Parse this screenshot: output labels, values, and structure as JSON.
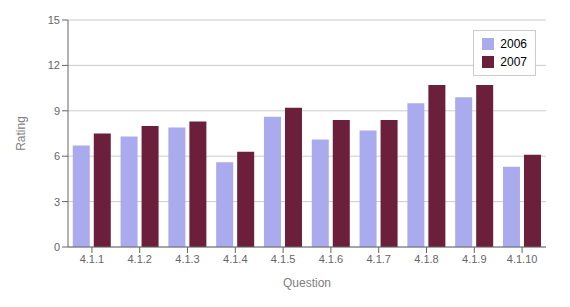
{
  "chart_data": {
    "type": "bar",
    "categories": [
      "4.1.1",
      "4.1.2",
      "4.1.3",
      "4.1.4",
      "4.1.5",
      "4.1.6",
      "4.1.7",
      "4.1.8",
      "4.1.9",
      "4.1.10"
    ],
    "series": [
      {
        "name": "2006",
        "color": "#aaaaee",
        "values": [
          6.7,
          7.3,
          7.9,
          5.6,
          8.6,
          7.1,
          7.7,
          9.5,
          9.9,
          5.3
        ]
      },
      {
        "name": "2007",
        "color": "#6b1f3a",
        "values": [
          7.5,
          8.0,
          8.3,
          6.3,
          9.2,
          8.4,
          8.4,
          10.7,
          10.7,
          6.1
        ]
      }
    ],
    "xlabel": "Question",
    "ylabel": "Rating",
    "ylim": [
      0,
      15
    ],
    "yticks": [
      0,
      3,
      6,
      9,
      12,
      15
    ],
    "grid": true,
    "legend": "upper right"
  }
}
